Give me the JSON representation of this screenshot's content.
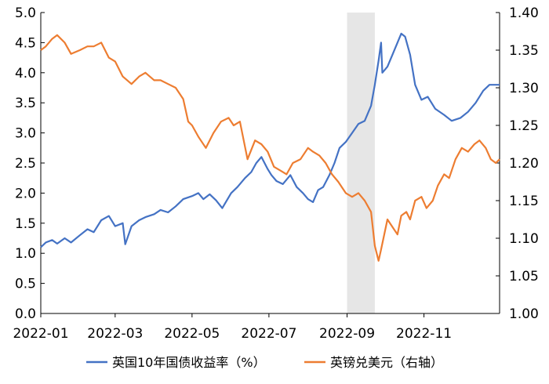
{
  "colors": {
    "uk_yield": "#4472C4",
    "gbp_usd": "#ED7D31",
    "shade": "#E6E6E6",
    "axis": "#000000"
  },
  "chart_data": {
    "type": "line",
    "title": "",
    "grid": false,
    "legend_position": "bottom",
    "x_ticks": [
      "2022-01",
      "2022-03",
      "2022-05",
      "2022-07",
      "2022-09",
      "2022-11"
    ],
    "x_range": [
      "2022-01-01",
      "2022-12-31"
    ],
    "y_left": {
      "min": 0.0,
      "max": 5.0,
      "ticks": [
        "0.0",
        "0.5",
        "1.0",
        "1.5",
        "2.0",
        "2.5",
        "3.0",
        "3.5",
        "4.0",
        "4.5",
        "5.0"
      ]
    },
    "y_right": {
      "min": 1.0,
      "max": 1.4,
      "ticks": [
        "1.00",
        "1.05",
        "1.10",
        "1.15",
        "1.20",
        "1.25",
        "1.30",
        "1.35",
        "1.40"
      ]
    },
    "shaded_period": {
      "start": "2022-09-01",
      "end": "2022-09-23"
    },
    "series": [
      {
        "name": "英国10年国债收益率（%）",
        "axis": "left",
        "points": [
          [
            "2022-01-01",
            1.1
          ],
          [
            "2022-01-05",
            1.18
          ],
          [
            "2022-01-10",
            1.22
          ],
          [
            "2022-01-14",
            1.16
          ],
          [
            "2022-01-20",
            1.25
          ],
          [
            "2022-01-25",
            1.18
          ],
          [
            "2022-02-01",
            1.3
          ],
          [
            "2022-02-07",
            1.4
          ],
          [
            "2022-02-12",
            1.35
          ],
          [
            "2022-02-18",
            1.55
          ],
          [
            "2022-02-24",
            1.62
          ],
          [
            "2022-03-01",
            1.45
          ],
          [
            "2022-03-07",
            1.5
          ],
          [
            "2022-03-09",
            1.15
          ],
          [
            "2022-03-14",
            1.45
          ],
          [
            "2022-03-20",
            1.55
          ],
          [
            "2022-03-25",
            1.6
          ],
          [
            "2022-04-01",
            1.65
          ],
          [
            "2022-04-06",
            1.72
          ],
          [
            "2022-04-12",
            1.68
          ],
          [
            "2022-04-18",
            1.78
          ],
          [
            "2022-04-24",
            1.9
          ],
          [
            "2022-05-01",
            1.95
          ],
          [
            "2022-05-06",
            2.0
          ],
          [
            "2022-05-10",
            1.9
          ],
          [
            "2022-05-15",
            1.98
          ],
          [
            "2022-05-20",
            1.88
          ],
          [
            "2022-05-25",
            1.75
          ],
          [
            "2022-06-01",
            2.0
          ],
          [
            "2022-06-06",
            2.1
          ],
          [
            "2022-06-12",
            2.25
          ],
          [
            "2022-06-17",
            2.35
          ],
          [
            "2022-06-21",
            2.5
          ],
          [
            "2022-06-25",
            2.6
          ],
          [
            "2022-06-30",
            2.4
          ],
          [
            "2022-07-03",
            2.3
          ],
          [
            "2022-07-07",
            2.2
          ],
          [
            "2022-07-12",
            2.15
          ],
          [
            "2022-07-18",
            2.3
          ],
          [
            "2022-07-23",
            2.1
          ],
          [
            "2022-07-28",
            2.0
          ],
          [
            "2022-08-01",
            1.9
          ],
          [
            "2022-08-05",
            1.85
          ],
          [
            "2022-08-09",
            2.05
          ],
          [
            "2022-08-13",
            2.1
          ],
          [
            "2022-08-18",
            2.3
          ],
          [
            "2022-08-22",
            2.5
          ],
          [
            "2022-08-26",
            2.75
          ],
          [
            "2022-08-31",
            2.85
          ],
          [
            "2022-09-05",
            3.0
          ],
          [
            "2022-09-10",
            3.15
          ],
          [
            "2022-09-15",
            3.2
          ],
          [
            "2022-09-20",
            3.45
          ],
          [
            "2022-09-23",
            3.8
          ],
          [
            "2022-09-26",
            4.2
          ],
          [
            "2022-09-28",
            4.5
          ],
          [
            "2022-09-29",
            4.0
          ],
          [
            "2022-10-03",
            4.1
          ],
          [
            "2022-10-07",
            4.3
          ],
          [
            "2022-10-11",
            4.5
          ],
          [
            "2022-10-14",
            4.65
          ],
          [
            "2022-10-17",
            4.6
          ],
          [
            "2022-10-21",
            4.3
          ],
          [
            "2022-10-25",
            3.8
          ],
          [
            "2022-10-30",
            3.55
          ],
          [
            "2022-11-04",
            3.6
          ],
          [
            "2022-11-10",
            3.4
          ],
          [
            "2022-11-17",
            3.3
          ],
          [
            "2022-11-23",
            3.2
          ],
          [
            "2022-11-30",
            3.25
          ],
          [
            "2022-12-06",
            3.35
          ],
          [
            "2022-12-12",
            3.5
          ],
          [
            "2022-12-18",
            3.7
          ],
          [
            "2022-12-23",
            3.8
          ],
          [
            "2022-12-31",
            3.8
          ]
        ]
      },
      {
        "name": "英镑兑美元（右轴）",
        "axis": "right",
        "points": [
          [
            "2022-01-01",
            1.35
          ],
          [
            "2022-01-05",
            1.355
          ],
          [
            "2022-01-10",
            1.365
          ],
          [
            "2022-01-14",
            1.37
          ],
          [
            "2022-01-20",
            1.36
          ],
          [
            "2022-01-25",
            1.345
          ],
          [
            "2022-02-01",
            1.35
          ],
          [
            "2022-02-07",
            1.355
          ],
          [
            "2022-02-12",
            1.355
          ],
          [
            "2022-02-18",
            1.36
          ],
          [
            "2022-02-24",
            1.34
          ],
          [
            "2022-03-01",
            1.335
          ],
          [
            "2022-03-07",
            1.315
          ],
          [
            "2022-03-14",
            1.305
          ],
          [
            "2022-03-20",
            1.315
          ],
          [
            "2022-03-25",
            1.32
          ],
          [
            "2022-04-01",
            1.31
          ],
          [
            "2022-04-06",
            1.31
          ],
          [
            "2022-04-12",
            1.305
          ],
          [
            "2022-04-18",
            1.3
          ],
          [
            "2022-04-24",
            1.285
          ],
          [
            "2022-04-28",
            1.255
          ],
          [
            "2022-05-01",
            1.25
          ],
          [
            "2022-05-06",
            1.235
          ],
          [
            "2022-05-12",
            1.22
          ],
          [
            "2022-05-18",
            1.24
          ],
          [
            "2022-05-24",
            1.255
          ],
          [
            "2022-05-30",
            1.26
          ],
          [
            "2022-06-03",
            1.25
          ],
          [
            "2022-06-08",
            1.255
          ],
          [
            "2022-06-14",
            1.205
          ],
          [
            "2022-06-20",
            1.23
          ],
          [
            "2022-06-25",
            1.225
          ],
          [
            "2022-06-30",
            1.215
          ],
          [
            "2022-07-05",
            1.195
          ],
          [
            "2022-07-10",
            1.19
          ],
          [
            "2022-07-15",
            1.185
          ],
          [
            "2022-07-20",
            1.2
          ],
          [
            "2022-07-26",
            1.205
          ],
          [
            "2022-08-01",
            1.22
          ],
          [
            "2022-08-05",
            1.215
          ],
          [
            "2022-08-10",
            1.21
          ],
          [
            "2022-08-15",
            1.2
          ],
          [
            "2022-08-20",
            1.185
          ],
          [
            "2022-08-25",
            1.175
          ],
          [
            "2022-08-31",
            1.16
          ],
          [
            "2022-09-05",
            1.155
          ],
          [
            "2022-09-10",
            1.16
          ],
          [
            "2022-09-15",
            1.15
          ],
          [
            "2022-09-20",
            1.135
          ],
          [
            "2022-09-23",
            1.09
          ],
          [
            "2022-09-26",
            1.07
          ],
          [
            "2022-09-28",
            1.085
          ],
          [
            "2022-10-03",
            1.125
          ],
          [
            "2022-10-07",
            1.115
          ],
          [
            "2022-10-11",
            1.105
          ],
          [
            "2022-10-14",
            1.13
          ],
          [
            "2022-10-18",
            1.135
          ],
          [
            "2022-10-21",
            1.125
          ],
          [
            "2022-10-25",
            1.15
          ],
          [
            "2022-10-30",
            1.155
          ],
          [
            "2022-11-03",
            1.14
          ],
          [
            "2022-11-08",
            1.15
          ],
          [
            "2022-11-12",
            1.17
          ],
          [
            "2022-11-17",
            1.185
          ],
          [
            "2022-11-21",
            1.18
          ],
          [
            "2022-11-26",
            1.205
          ],
          [
            "2022-12-01",
            1.22
          ],
          [
            "2022-12-06",
            1.215
          ],
          [
            "2022-12-11",
            1.225
          ],
          [
            "2022-12-15",
            1.23
          ],
          [
            "2022-12-20",
            1.22
          ],
          [
            "2022-12-24",
            1.205
          ],
          [
            "2022-12-28",
            1.2
          ],
          [
            "2022-12-31",
            1.205
          ]
        ]
      }
    ]
  }
}
